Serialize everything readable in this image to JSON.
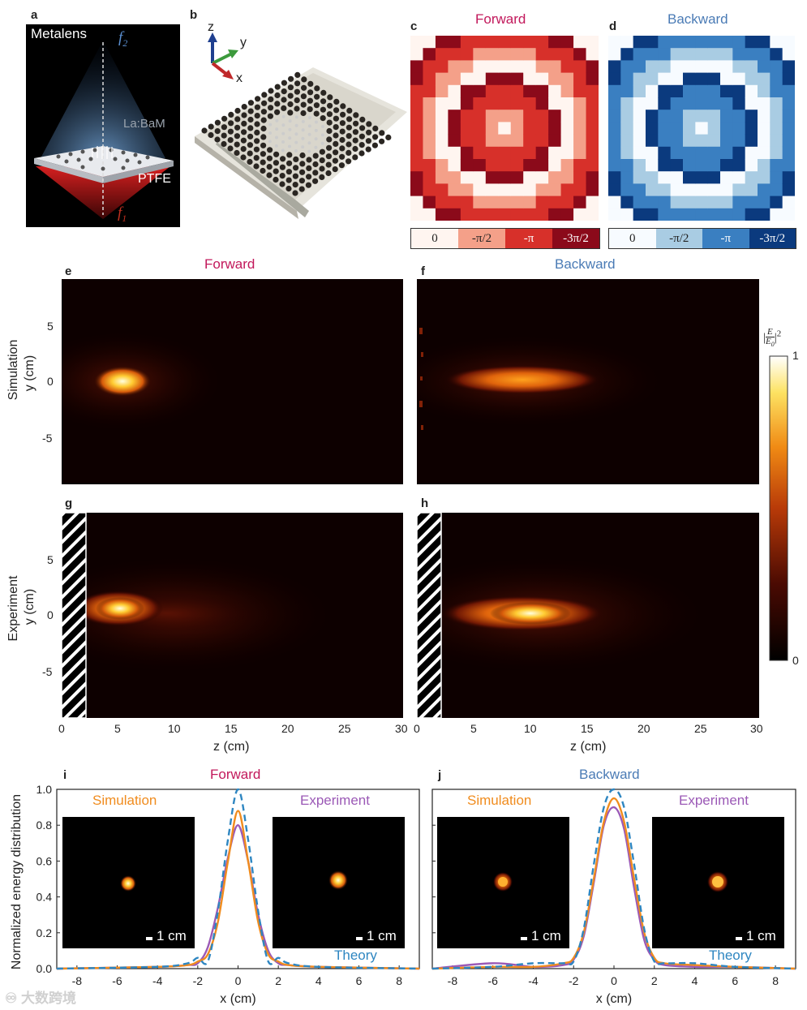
{
  "panel_labels": {
    "a": "a",
    "b": "b",
    "c": "c",
    "d": "d",
    "e": "e",
    "f": "f",
    "g": "g",
    "h": "h",
    "i": "i",
    "j": "j"
  },
  "panel_a": {
    "metalens": "Metalens",
    "f2": "f",
    "f2_sub": "2",
    "material": "La:BaM",
    "substrate": "PTFE",
    "f1": "f",
    "f1_sub": "1"
  },
  "panel_b": {
    "axis_z": "z",
    "axis_y": "y",
    "axis_x": "x"
  },
  "titles": {
    "c": "Forward",
    "d": "Backward",
    "e": "Forward",
    "f": "Backward",
    "i": "Forward",
    "j": "Backward"
  },
  "phase_colorbar_forward": [
    "0",
    "-π/2",
    "-π",
    "-3π/2"
  ],
  "phase_colorbar_backward": [
    "0",
    "-π/2",
    "-π",
    "-3π/2"
  ],
  "colors": {
    "forward": "#c2185b",
    "backward": "#4a7bb5",
    "simulation": "#f08c1e",
    "experiment": "#9b59b6",
    "theory": "#2e86c1",
    "fwd_phase": [
      "#fff5f0",
      "#f4a089",
      "#d7302a",
      "#8b0a1a"
    ],
    "bwd_phase": [
      "#f7fbff",
      "#a9cce3",
      "#3a7fc1",
      "#0b3a7e"
    ]
  },
  "row_labels": {
    "simulation": "Simulation",
    "experiment": "Experiment",
    "y_axis": "y (cm)"
  },
  "y_ticks": [
    "5",
    "0",
    "-5"
  ],
  "z_ticks": [
    "0",
    "5",
    "10",
    "15",
    "20",
    "25",
    "30"
  ],
  "z_label": "z (cm)",
  "intensity_colorbar": {
    "label_E": "E",
    "label_E0": "E",
    "label_E0_sub": "0",
    "label_exp": "2",
    "max": "1",
    "min": "0"
  },
  "line_plots": {
    "y_label": "Normalized energy distribution",
    "x_label": "x (cm)",
    "y_ticks": [
      "1.0",
      "0.8",
      "0.6",
      "0.4",
      "0.2",
      "0.0"
    ],
    "x_ticks": [
      "-8",
      "-6",
      "-4",
      "-2",
      "0",
      "2",
      "4",
      "6",
      "8"
    ],
    "legend": {
      "simulation": "Simulation",
      "experiment": "Experiment",
      "theory": "Theory"
    },
    "scale_bar": "1 cm"
  },
  "watermark": "大数跨境",
  "chart_data": [
    {
      "type": "line",
      "title": "Forward",
      "xlabel": "x (cm)",
      "ylabel": "Normalized energy distribution",
      "xlim": [
        -9,
        9
      ],
      "ylim": [
        0,
        1.0
      ],
      "series": [
        {
          "name": "Simulation",
          "x": [
            -9,
            -4,
            -2.5,
            -2,
            -1.5,
            -1,
            -0.5,
            0,
            0.5,
            1,
            1.5,
            2,
            2.5,
            4,
            9
          ],
          "y": [
            0,
            0.01,
            0.02,
            0.04,
            0.08,
            0.26,
            0.6,
            0.88,
            0.6,
            0.26,
            0.08,
            0.04,
            0.02,
            0.01,
            0
          ]
        },
        {
          "name": "Experiment",
          "x": [
            -9,
            -4,
            -2.5,
            -2,
            -1.5,
            -1,
            -0.5,
            0,
            0.5,
            1,
            1.5,
            2,
            2.5,
            4,
            9
          ],
          "y": [
            0,
            0.01,
            0.02,
            0.03,
            0.12,
            0.34,
            0.62,
            0.8,
            0.6,
            0.3,
            0.1,
            0.03,
            0.02,
            0.01,
            0
          ]
        },
        {
          "name": "Theory",
          "x": [
            -9,
            -4,
            -2.5,
            -2,
            -1.5,
            -1,
            -0.5,
            0,
            0.5,
            1,
            1.5,
            2,
            2.5,
            4,
            9
          ],
          "y": [
            0,
            0.01,
            0.03,
            0.06,
            0.04,
            0.32,
            0.72,
            1.0,
            0.72,
            0.32,
            0.04,
            0.06,
            0.03,
            0.01,
            0
          ]
        }
      ]
    },
    {
      "type": "line",
      "title": "Backward",
      "xlabel": "x (cm)",
      "ylabel": "Normalized energy distribution",
      "xlim": [
        -9,
        9
      ],
      "ylim": [
        0,
        1.0
      ],
      "series": [
        {
          "name": "Simulation",
          "x": [
            -9,
            -6,
            -4,
            -2.5,
            -2,
            -1.5,
            -1,
            -0.5,
            0,
            0.5,
            1,
            1.5,
            2,
            2.5,
            4,
            6,
            9
          ],
          "y": [
            0,
            0.01,
            0.01,
            0.03,
            0.06,
            0.2,
            0.5,
            0.82,
            0.95,
            0.82,
            0.5,
            0.2,
            0.06,
            0.03,
            0.02,
            0.01,
            0
          ]
        },
        {
          "name": "Experiment",
          "x": [
            -9,
            -6,
            -4,
            -2.5,
            -2,
            -1.5,
            -1,
            -0.5,
            0,
            0.5,
            1,
            1.5,
            2,
            2.5,
            4,
            6,
            9
          ],
          "y": [
            0,
            0.03,
            0.01,
            0.02,
            0.05,
            0.18,
            0.48,
            0.8,
            0.9,
            0.78,
            0.45,
            0.16,
            0.05,
            0.02,
            0.01,
            0.01,
            0
          ]
        },
        {
          "name": "Theory",
          "x": [
            -9,
            -6,
            -4,
            -2.5,
            -2,
            -1.5,
            -1,
            -0.5,
            0,
            0.5,
            1,
            1.5,
            2,
            2.5,
            4,
            6,
            9
          ],
          "y": [
            0,
            0.01,
            0.03,
            0.03,
            0.04,
            0.22,
            0.58,
            0.9,
            1.0,
            0.9,
            0.58,
            0.22,
            0.04,
            0.03,
            0.03,
            0.01,
            0
          ]
        }
      ]
    }
  ]
}
